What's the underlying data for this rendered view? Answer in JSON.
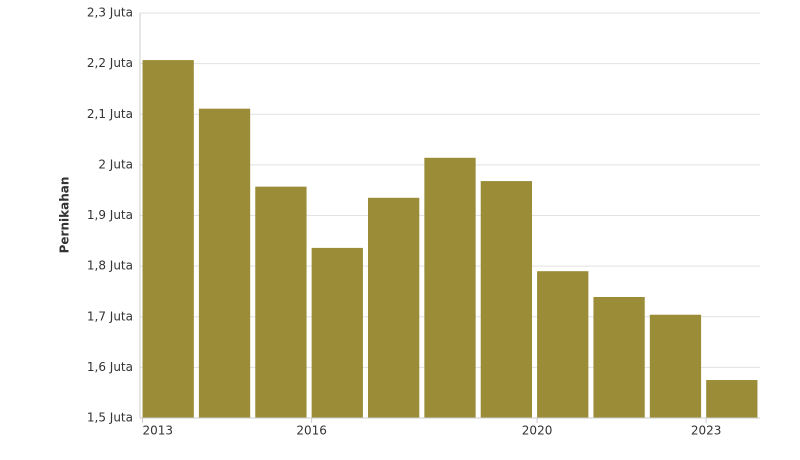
{
  "chart_data": {
    "type": "bar",
    "y_label": "Pernikahan",
    "categories": [
      "2013",
      null,
      null,
      "2016",
      null,
      null,
      null,
      "2020",
      null,
      null,
      "2023"
    ],
    "values": [
      2.207,
      2.111,
      1.957,
      1.836,
      1.935,
      2.014,
      1.968,
      1.79,
      1.739,
      1.704,
      1.575
    ],
    "color": "#9b8c38",
    "ylim": [
      1.5,
      2.3
    ],
    "yticks": [
      {
        "value": 1.5,
        "label": "1,5 Juta"
      },
      {
        "value": 1.6,
        "label": "1,6 Juta"
      },
      {
        "value": 1.7,
        "label": "1,7 Juta"
      },
      {
        "value": 1.8,
        "label": "1,8 Juta"
      },
      {
        "value": 1.9,
        "label": "1,9 Juta"
      },
      {
        "value": 2,
        "label": "2 Juta"
      },
      {
        "value": 2.1,
        "label": "2,1 Juta"
      },
      {
        "value": 2.2,
        "label": "2,2 Juta"
      },
      {
        "value": 2.3,
        "label": "2,3 Juta"
      }
    ],
    "grid": true
  }
}
